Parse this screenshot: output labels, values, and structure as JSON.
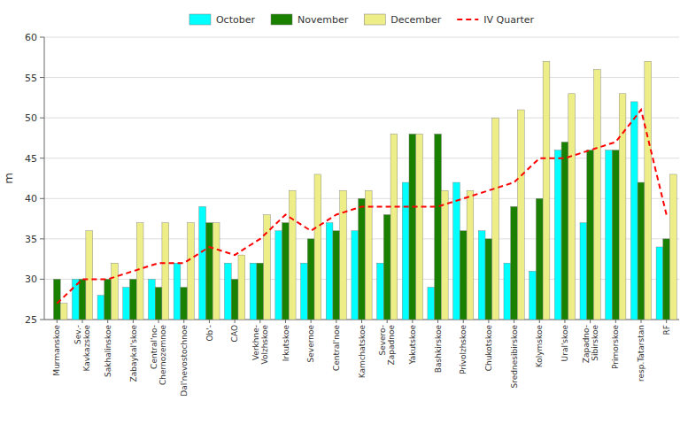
{
  "chart_data": {
    "type": "bar",
    "categories": [
      "Murmanskoe",
      "Sev.-\nKavkazskoe",
      "Sakhalinskoe",
      "Zabaykal'skoe",
      "Central'no-\nChernozemnoe",
      "Dal'nevostochnoe",
      "Ob'-",
      "CAO",
      "Verkhne-\nVolzhskoe",
      "Irkutskoe",
      "Severnoe",
      "Central'noe",
      "Kamchatskoe",
      "Severo-\nZapadnoe",
      "Yakutskoe",
      "Bashkirskoe",
      "Privolzhskoe",
      "Chukotskoe",
      "Srednesibirskoe",
      "Kolymskoe",
      "Ural'skoe",
      "Zapadno-\nSibirskoe",
      "Primorskoe",
      "resp.Tatarstan",
      "RF"
    ],
    "series": [
      {
        "name": "October",
        "color": "#00FFFF",
        "values": [
          25,
          30,
          28,
          29,
          30,
          32,
          39,
          32,
          32,
          36,
          32,
          37,
          36,
          32,
          42,
          29,
          42,
          36,
          32,
          31,
          46,
          37,
          46,
          52,
          34
        ]
      },
      {
        "name": "November",
        "color": "#1A8000",
        "values": [
          30,
          30,
          30,
          30,
          29,
          29,
          37,
          30,
          32,
          37,
          35,
          36,
          40,
          38,
          48,
          48,
          36,
          35,
          39,
          40,
          47,
          46,
          46,
          42,
          35
        ]
      },
      {
        "name": "December",
        "color": "#EEEE88",
        "values": [
          27,
          36,
          32,
          37,
          37,
          37,
          37,
          33,
          38,
          41,
          43,
          41,
          41,
          48,
          48,
          41,
          41,
          50,
          51,
          57,
          53,
          56,
          53,
          57,
          43
        ]
      },
      {
        "name": "IV Quarter",
        "type": "line",
        "line_style": "dashed",
        "color": "#FF0000",
        "values": [
          27,
          30,
          30,
          31,
          32,
          32,
          34,
          33,
          35,
          38,
          36,
          38,
          39,
          39,
          39,
          39,
          40,
          41,
          42,
          45,
          45,
          46,
          47,
          51,
          38
        ]
      }
    ],
    "ylabel": "m",
    "ylim": [
      25,
      60
    ],
    "yticks": [
      25,
      30,
      35,
      40,
      45,
      50,
      55,
      60
    ],
    "grid": true,
    "legend": "top"
  }
}
